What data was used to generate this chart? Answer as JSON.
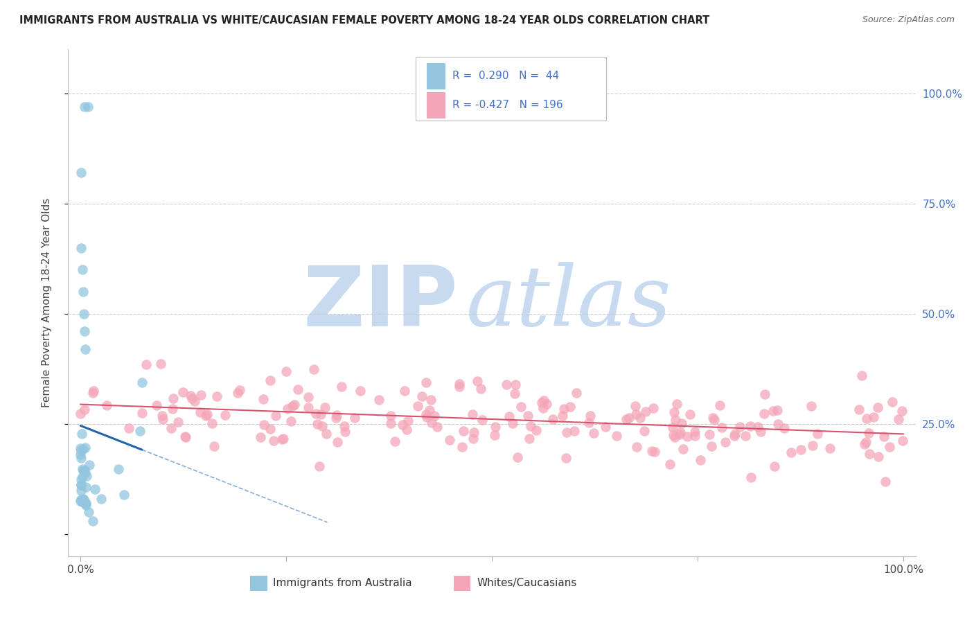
{
  "title": "IMMIGRANTS FROM AUSTRALIA VS WHITE/CAUCASIAN FEMALE POVERTY AMONG 18-24 YEAR OLDS CORRELATION CHART",
  "source": "Source: ZipAtlas.com",
  "ylabel": "Female Poverty Among 18-24 Year Olds",
  "legend1_r": "0.290",
  "legend1_n": "44",
  "legend2_r": "-0.427",
  "legend2_n": "196",
  "blue_color": "#92c5de",
  "pink_color": "#f4a6b8",
  "blue_line_color": "#2166ac",
  "pink_line_color": "#d6536d",
  "right_axis_color": "#4472c4",
  "title_color": "#222222",
  "source_color": "#666666",
  "watermark_zip_color": "#c8daf0",
  "watermark_atlas_color": "#c8daf0",
  "background_color": "#ffffff",
  "grid_color": "#cccccc",
  "seed": 99,
  "blue_n": 44,
  "pink_n": 196
}
